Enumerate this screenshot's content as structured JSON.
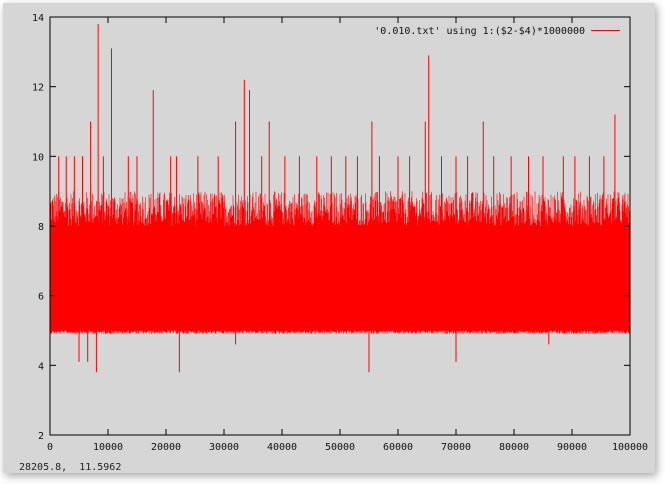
{
  "chart_data": {
    "type": "line",
    "title": "",
    "xlabel": "",
    "ylabel": "",
    "xlim": [
      0,
      100000
    ],
    "ylim": [
      2,
      14
    ],
    "x_ticks": [
      0,
      10000,
      20000,
      30000,
      40000,
      50000,
      60000,
      70000,
      80000,
      90000,
      100000
    ],
    "y_ticks": [
      2,
      4,
      6,
      8,
      10,
      12,
      14
    ],
    "x_tick_labels": [
      "0",
      "10000",
      "20000",
      "30000",
      "40000",
      "50000",
      "60000",
      "70000",
      "80000",
      "90000",
      "100000"
    ],
    "y_tick_labels": [
      "2",
      "4",
      "6",
      "8",
      "10",
      "12",
      "14"
    ],
    "grid": false,
    "legend_position": "top-right",
    "series": [
      {
        "name": "'0.010.txt' using 1:($2-$4)*1000000",
        "color": "#ff0000",
        "band": {
          "x_start": 0,
          "x_end": 100000,
          "dense_low": 5,
          "dense_high": 8,
          "common_low": 4.9,
          "common_high": 9
        },
        "peaks": [
          {
            "x": 1500,
            "y": 10
          },
          {
            "x": 2800,
            "y": 10
          },
          {
            "x": 4200,
            "y": 10
          },
          {
            "x": 5600,
            "y": 10
          },
          {
            "x": 7000,
            "y": 11
          },
          {
            "x": 8300,
            "y": 13.8
          },
          {
            "x": 9200,
            "y": 10
          },
          {
            "x": 10600,
            "y": 13.1
          },
          {
            "x": 13500,
            "y": 10
          },
          {
            "x": 15000,
            "y": 10
          },
          {
            "x": 17800,
            "y": 11.9
          },
          {
            "x": 20800,
            "y": 10
          },
          {
            "x": 21800,
            "y": 10
          },
          {
            "x": 25500,
            "y": 10
          },
          {
            "x": 29000,
            "y": 10
          },
          {
            "x": 32000,
            "y": 11
          },
          {
            "x": 33500,
            "y": 12.2
          },
          {
            "x": 34400,
            "y": 11.9
          },
          {
            "x": 36500,
            "y": 10
          },
          {
            "x": 37800,
            "y": 11
          },
          {
            "x": 40500,
            "y": 10
          },
          {
            "x": 43000,
            "y": 10
          },
          {
            "x": 46000,
            "y": 10
          },
          {
            "x": 48500,
            "y": 10
          },
          {
            "x": 51000,
            "y": 10
          },
          {
            "x": 53000,
            "y": 10
          },
          {
            "x": 55500,
            "y": 11
          },
          {
            "x": 56800,
            "y": 10
          },
          {
            "x": 60000,
            "y": 10
          },
          {
            "x": 62000,
            "y": 10
          },
          {
            "x": 64700,
            "y": 11
          },
          {
            "x": 65300,
            "y": 12.9
          },
          {
            "x": 67500,
            "y": 10
          },
          {
            "x": 70000,
            "y": 10
          },
          {
            "x": 72000,
            "y": 10
          },
          {
            "x": 74700,
            "y": 11
          },
          {
            "x": 76500,
            "y": 10
          },
          {
            "x": 79500,
            "y": 10
          },
          {
            "x": 82500,
            "y": 10
          },
          {
            "x": 85000,
            "y": 10
          },
          {
            "x": 88500,
            "y": 10
          },
          {
            "x": 90500,
            "y": 10
          },
          {
            "x": 93000,
            "y": 10
          },
          {
            "x": 95500,
            "y": 10
          },
          {
            "x": 97400,
            "y": 11.2
          }
        ],
        "dips": [
          {
            "x": 5000,
            "y": 4.1
          },
          {
            "x": 6500,
            "y": 4.1
          },
          {
            "x": 8000,
            "y": 3.8
          },
          {
            "x": 22300,
            "y": 3.8
          },
          {
            "x": 32000,
            "y": 4.6
          },
          {
            "x": 55000,
            "y": 3.8
          },
          {
            "x": 70000,
            "y": 4.1
          },
          {
            "x": 86000,
            "y": 4.6
          }
        ]
      }
    ]
  },
  "status_bar": {
    "coordinates": "28205.8,  11.5962"
  }
}
